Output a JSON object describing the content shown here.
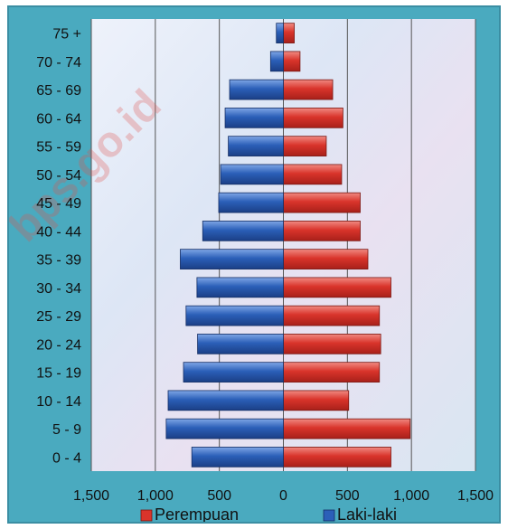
{
  "chart_data": {
    "type": "bar",
    "orientation": "horizontal",
    "title": "",
    "categories": [
      "0 - 4",
      "5  - 9",
      "10 - 14",
      "15 - 19",
      "20 - 24",
      "25 - 29",
      "30 - 34",
      "35 - 39",
      "40 - 44",
      "45 - 49",
      "50 - 54",
      "55 - 59",
      "60 - 64",
      "65 - 69",
      "70 - 74",
      "75 +"
    ],
    "series": [
      {
        "name": "Perempuan",
        "color": "#d9342b",
        "values": [
          840,
          990,
          510,
          750,
          760,
          750,
          840,
          660,
          600,
          600,
          455,
          335,
          465,
          385,
          130,
          85
        ]
      },
      {
        "name": "Laki-laki",
        "color": "#2b5fb8",
        "values": [
          715,
          915,
          900,
          780,
          670,
          760,
          675,
          805,
          630,
          505,
          490,
          430,
          455,
          420,
          100,
          55
        ]
      }
    ],
    "x_tick_labels": [
      "1,500",
      "1,000",
      "500",
      "0",
      "500",
      "1,000",
      "1,500"
    ],
    "xlim": [
      -1500,
      1500
    ],
    "grid": true,
    "legend_position": "bottom",
    "watermark_text": "bps.go.id"
  }
}
